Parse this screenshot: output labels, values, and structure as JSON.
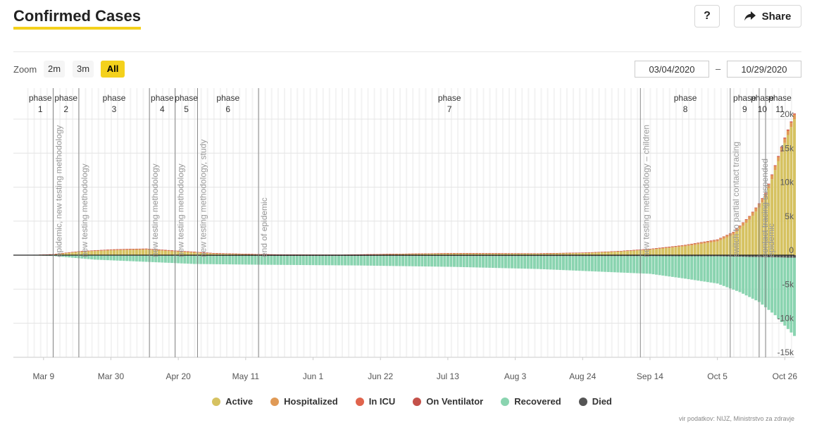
{
  "header": {
    "title": "Confirmed Cases",
    "help_label": "?",
    "share_label": "Share"
  },
  "zoom": {
    "label": "Zoom",
    "options": [
      "2m",
      "3m",
      "All"
    ],
    "active": "All"
  },
  "date_range": {
    "from": "03/04/2020",
    "separator": "–",
    "to": "10/29/2020"
  },
  "colors": {
    "active": "#d6c261",
    "hospitalized": "#e09a56",
    "icu": "#e0644d",
    "ventilator": "#c4514a",
    "recovered": "#8ad4b0",
    "died": "#555555"
  },
  "chart_data": {
    "type": "bar",
    "stacked": true,
    "x_ticks": [
      "Mar 9",
      "Mar 30",
      "Apr 20",
      "May 11",
      "Jun 1",
      "Jun 22",
      "Jul 13",
      "Aug 3",
      "Aug 24",
      "Sep 14",
      "Oct 5",
      "Oct 26"
    ],
    "y_ticks": [
      "20k",
      "15k",
      "10k",
      "5k",
      "0",
      "-5k",
      "-10k",
      "-15k"
    ],
    "ylim": [
      -15000,
      20000
    ],
    "legend_position": "bottom",
    "grid": true,
    "phases": [
      {
        "label": "phase",
        "number": "1",
        "start": "2020-03-04"
      },
      {
        "label": "phase",
        "number": "2",
        "start": "2020-03-12"
      },
      {
        "label": "phase",
        "number": "3",
        "start": "2020-03-20"
      },
      {
        "label": "phase",
        "number": "4",
        "start": "2020-04-11"
      },
      {
        "label": "phase",
        "number": "5",
        "start": "2020-04-19"
      },
      {
        "label": "phase",
        "number": "6",
        "start": "2020-04-26"
      },
      {
        "label": "phase",
        "number": "7",
        "start": "2020-05-15"
      },
      {
        "label": "phase",
        "number": "8",
        "start": "2020-09-11"
      },
      {
        "label": "phase",
        "number": "9",
        "start": "2020-10-09"
      },
      {
        "label": "phase",
        "number": "10",
        "start": "2020-10-18"
      },
      {
        "label": "phase",
        "number": "11",
        "start": "2020-10-20"
      }
    ],
    "markers": [
      {
        "date": "2020-03-12",
        "label": "epidemic, new testing methodology"
      },
      {
        "date": "2020-03-20",
        "label": "new testing methodology"
      },
      {
        "date": "2020-04-11",
        "label": "new testing methodology"
      },
      {
        "date": "2020-04-19",
        "label": "new testing methodology"
      },
      {
        "date": "2020-04-26",
        "label": "new testing methodology, study"
      },
      {
        "date": "2020-05-15",
        "label": "end of epidemic"
      },
      {
        "date": "2020-09-11",
        "label": "new testing methodology – children"
      },
      {
        "date": "2020-10-09",
        "label": "switch to partial contact tracing"
      },
      {
        "date": "2020-10-18",
        "label": "contact tracing suspended"
      },
      {
        "date": "2020-10-20",
        "label": "epidemic"
      }
    ],
    "series": [
      {
        "name": "Active",
        "keyframes": [
          [
            "2020-03-04",
            0
          ],
          [
            "2020-03-12",
            100
          ],
          [
            "2020-03-20",
            500
          ],
          [
            "2020-03-30",
            700
          ],
          [
            "2020-04-10",
            800
          ],
          [
            "2020-04-20",
            500
          ],
          [
            "2020-05-01",
            200
          ],
          [
            "2020-05-20",
            80
          ],
          [
            "2020-06-10",
            40
          ],
          [
            "2020-06-25",
            150
          ],
          [
            "2020-07-15",
            260
          ],
          [
            "2020-08-10",
            220
          ],
          [
            "2020-08-25",
            330
          ],
          [
            "2020-09-05",
            550
          ],
          [
            "2020-09-14",
            800
          ],
          [
            "2020-09-25",
            1300
          ],
          [
            "2020-10-05",
            2000
          ],
          [
            "2020-10-10",
            3000
          ],
          [
            "2020-10-15",
            5200
          ],
          [
            "2020-10-18",
            7000
          ],
          [
            "2020-10-20",
            8500
          ],
          [
            "2020-10-23",
            12500
          ],
          [
            "2020-10-26",
            16500
          ],
          [
            "2020-10-29",
            20000
          ]
        ]
      },
      {
        "name": "Hospitalized",
        "keyframes": [
          [
            "2020-03-04",
            0
          ],
          [
            "2020-03-20",
            50
          ],
          [
            "2020-04-05",
            120
          ],
          [
            "2020-04-25",
            100
          ],
          [
            "2020-05-15",
            20
          ],
          [
            "2020-06-01",
            10
          ],
          [
            "2020-07-01",
            30
          ],
          [
            "2020-08-01",
            30
          ],
          [
            "2020-09-01",
            40
          ],
          [
            "2020-09-20",
            120
          ],
          [
            "2020-10-05",
            250
          ],
          [
            "2020-10-15",
            450
          ],
          [
            "2020-10-29",
            650
          ]
        ]
      },
      {
        "name": "In ICU",
        "keyframes": [
          [
            "2020-03-04",
            0
          ],
          [
            "2020-04-01",
            30
          ],
          [
            "2020-05-01",
            20
          ],
          [
            "2020-06-01",
            5
          ],
          [
            "2020-09-01",
            10
          ],
          [
            "2020-10-10",
            40
          ],
          [
            "2020-10-29",
            110
          ]
        ]
      },
      {
        "name": "On Ventilator",
        "keyframes": [
          [
            "2020-03-04",
            0
          ],
          [
            "2020-04-01",
            20
          ],
          [
            "2020-05-01",
            15
          ],
          [
            "2020-06-01",
            3
          ],
          [
            "2020-09-01",
            5
          ],
          [
            "2020-10-10",
            30
          ],
          [
            "2020-10-29",
            80
          ]
        ]
      },
      {
        "name": "Recovered",
        "keyframes": [
          [
            "2020-03-04",
            0
          ],
          [
            "2020-03-12",
            -100
          ],
          [
            "2020-03-25",
            -600
          ],
          [
            "2020-04-10",
            -900
          ],
          [
            "2020-04-25",
            -1200
          ],
          [
            "2020-05-15",
            -1300
          ],
          [
            "2020-06-15",
            -1400
          ],
          [
            "2020-07-15",
            -1600
          ],
          [
            "2020-08-10",
            -1900
          ],
          [
            "2020-08-25",
            -2200
          ],
          [
            "2020-09-14",
            -2600
          ],
          [
            "2020-09-25",
            -3300
          ],
          [
            "2020-10-05",
            -4000
          ],
          [
            "2020-10-12",
            -5200
          ],
          [
            "2020-10-18",
            -6600
          ],
          [
            "2020-10-23",
            -8500
          ],
          [
            "2020-10-26",
            -10000
          ],
          [
            "2020-10-29",
            -11500
          ]
        ]
      },
      {
        "name": "Died",
        "keyframes": [
          [
            "2020-03-04",
            0
          ],
          [
            "2020-03-20",
            -50
          ],
          [
            "2020-04-10",
            -80
          ],
          [
            "2020-05-01",
            -100
          ],
          [
            "2020-06-01",
            -110
          ],
          [
            "2020-08-01",
            -130
          ],
          [
            "2020-09-14",
            -140
          ],
          [
            "2020-10-05",
            -170
          ],
          [
            "2020-10-29",
            -380
          ]
        ]
      }
    ]
  },
  "source": "vir podatkov: NIJZ, Ministrstvo za zdravje"
}
